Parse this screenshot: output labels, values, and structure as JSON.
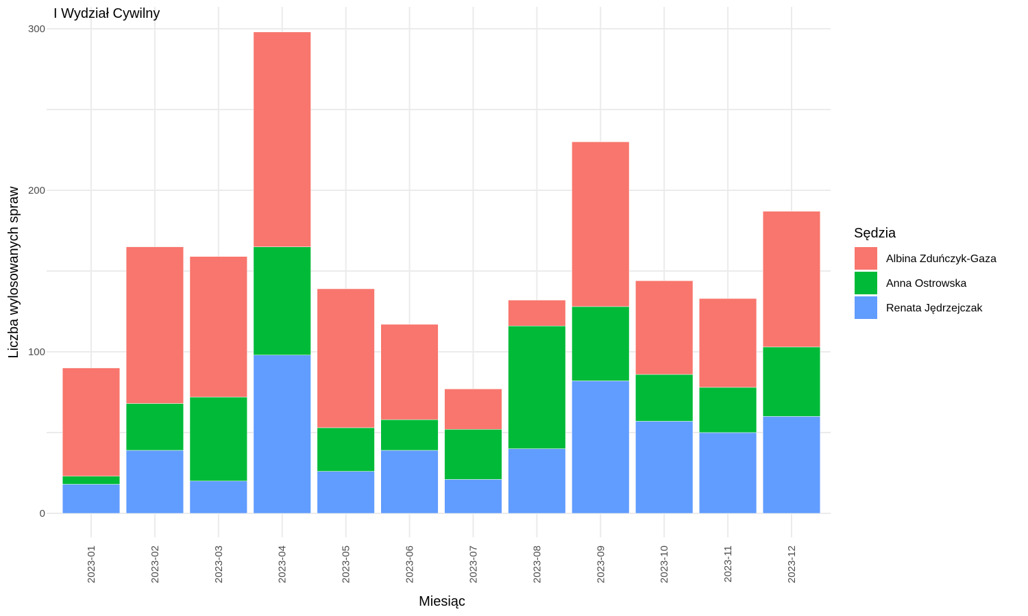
{
  "chart_data": {
    "type": "bar",
    "stacked": true,
    "title": "I Wydział Cywilny",
    "xlabel": "Miesiąc",
    "ylabel": "Liczba wylosowanych spraw",
    "ylim": [
      0,
      300
    ],
    "yticks": [
      0,
      100,
      200,
      300
    ],
    "grid": true,
    "legend": {
      "title": "Sędzia",
      "position": "right"
    },
    "categories": [
      "2023-01",
      "2023-02",
      "2023-03",
      "2023-04",
      "2023-05",
      "2023-06",
      "2023-07",
      "2023-08",
      "2023-09",
      "2023-10",
      "2023-11",
      "2023-12"
    ],
    "series": [
      {
        "name": "Renata Jędrzejczak",
        "color": "#619CFF",
        "values": [
          18,
          39,
          20,
          98,
          26,
          39,
          21,
          40,
          82,
          57,
          50,
          60
        ]
      },
      {
        "name": "Anna Ostrowska",
        "color": "#00BA38",
        "values": [
          5,
          29,
          52,
          67,
          27,
          19,
          31,
          76,
          46,
          29,
          28,
          43
        ]
      },
      {
        "name": "Albina Zduńczyk-Gaza",
        "color": "#F8766D",
        "values": [
          67,
          97,
          87,
          133,
          86,
          59,
          25,
          16,
          102,
          58,
          55,
          84
        ]
      }
    ],
    "legend_order": [
      "Albina Zduńczyk-Gaza",
      "Anna Ostrowska",
      "Renata Jędrzejczak"
    ]
  }
}
